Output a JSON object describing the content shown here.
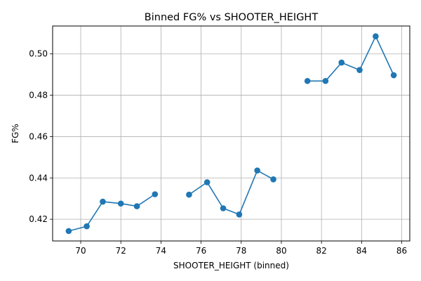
{
  "chart_data": {
    "type": "line",
    "title": "Binned FG% vs SHOOTER_HEIGHT",
    "xlabel": "SHOOTER_HEIGHT (binned)",
    "ylabel": "FG%",
    "xlim": [
      68.6,
      86.4
    ],
    "ylim": [
      0.4095,
      0.5135
    ],
    "xticks": [
      70,
      72,
      74,
      76,
      78,
      80,
      82,
      84,
      86
    ],
    "yticks": [
      0.42,
      0.44,
      0.46,
      0.48,
      0.5
    ],
    "xtick_labels": [
      "70",
      "72",
      "74",
      "76",
      "78",
      "80",
      "82",
      "84",
      "86"
    ],
    "ytick_labels": [
      "0.42",
      "0.44",
      "0.46",
      "0.48",
      "0.50"
    ],
    "grid": true,
    "legend": "none",
    "color": "#1f77b4",
    "segments": [
      {
        "x": [
          69.4,
          70.3,
          71.1,
          72.0,
          72.8,
          73.7
        ],
        "y": [
          0.4143,
          0.4166,
          0.4285,
          0.4276,
          0.4263,
          0.4321
        ]
      },
      {
        "x": [
          75.4,
          76.3,
          77.1,
          77.9,
          78.8,
          79.6
        ],
        "y": [
          0.4319,
          0.4379,
          0.4253,
          0.4223,
          0.4436,
          0.4393
        ]
      },
      {
        "x": [
          81.3,
          82.2,
          83.0,
          83.9,
          84.7,
          85.6
        ],
        "y": [
          0.4869,
          0.4869,
          0.4958,
          0.4922,
          0.5085,
          0.4897
        ]
      }
    ]
  }
}
